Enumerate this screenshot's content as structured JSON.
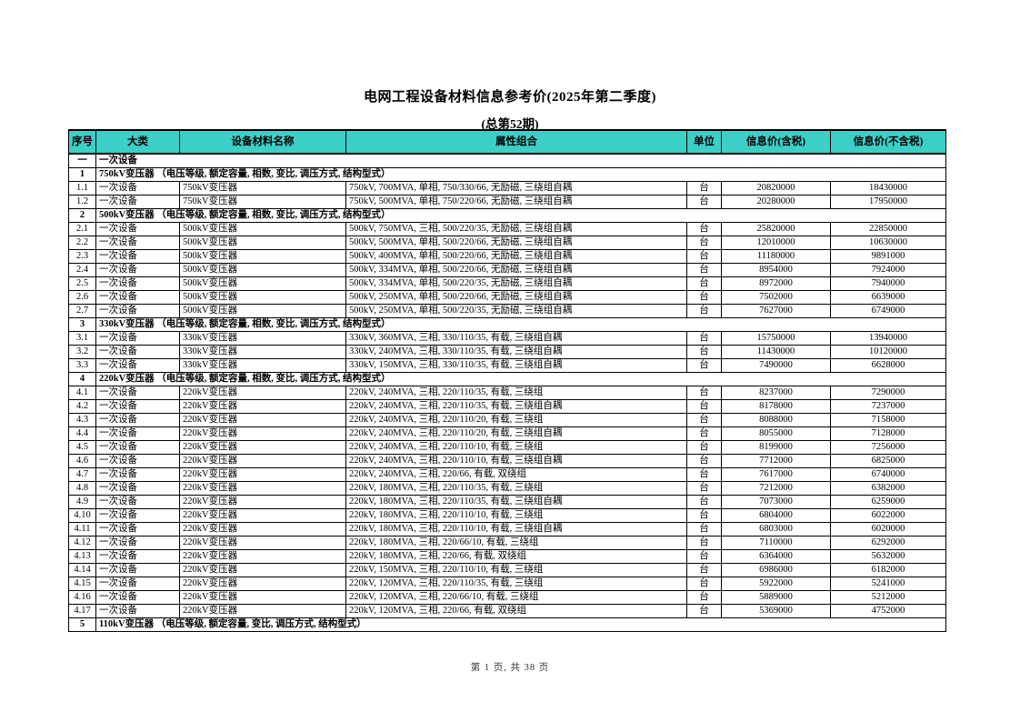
{
  "page": {
    "title": "电网工程设备材料信息参考价(2025年第二季度)",
    "subtitle": "(总第52期)",
    "footer": "第 1 页, 共 38 页"
  },
  "table": {
    "header_bg": "#3ccfc7",
    "columns": [
      "序号",
      "大类",
      "设备材料名称",
      "属性组合",
      "单位",
      "信息价(含税)",
      "信息价(不含税)"
    ],
    "rows": [
      {
        "type": "category",
        "seq": "一",
        "label": "一次设备"
      },
      {
        "type": "section",
        "seq": "1",
        "label": "750kV变压器 （电压等级, 额定容量, 相数, 变比, 调压方式, 结构型式）"
      },
      {
        "type": "item",
        "seq": "1.1",
        "category": "一次设备",
        "name": "750kV变压器",
        "attrs": "750kV, 700MVA, 单相, 750/330/66, 无励磁, 三绕组自耦",
        "unit": "台",
        "price_tax": "20820000",
        "price_notax": "18430000"
      },
      {
        "type": "item",
        "seq": "1.2",
        "category": "一次设备",
        "name": "750kV变压器",
        "attrs": "750kV, 500MVA, 单相, 750/220/66, 无励磁, 三绕组自耦",
        "unit": "台",
        "price_tax": "20280000",
        "price_notax": "17950000"
      },
      {
        "type": "section",
        "seq": "2",
        "label": "500kV变压器 （电压等级, 额定容量, 相数, 变比, 调压方式, 结构型式）"
      },
      {
        "type": "item",
        "seq": "2.1",
        "category": "一次设备",
        "name": "500kV变压器",
        "attrs": "500kV, 750MVA, 三相, 500/220/35, 无励磁, 三绕组自耦",
        "unit": "台",
        "price_tax": "25820000",
        "price_notax": "22850000"
      },
      {
        "type": "item",
        "seq": "2.2",
        "category": "一次设备",
        "name": "500kV变压器",
        "attrs": "500kV, 500MVA, 单相, 500/220/66, 无励磁, 三绕组自耦",
        "unit": "台",
        "price_tax": "12010000",
        "price_notax": "10630000"
      },
      {
        "type": "item",
        "seq": "2.3",
        "category": "一次设备",
        "name": "500kV变压器",
        "attrs": "500kV, 400MVA, 单相, 500/220/66, 无励磁, 三绕组自耦",
        "unit": "台",
        "price_tax": "11180000",
        "price_notax": "9891000"
      },
      {
        "type": "item",
        "seq": "2.4",
        "category": "一次设备",
        "name": "500kV变压器",
        "attrs": "500kV, 334MVA, 单相, 500/220/66, 无励磁, 三绕组自耦",
        "unit": "台",
        "price_tax": "8954000",
        "price_notax": "7924000"
      },
      {
        "type": "item",
        "seq": "2.5",
        "category": "一次设备",
        "name": "500kV变压器",
        "attrs": "500kV, 334MVA, 单相, 500/220/35, 无励磁, 三绕组自耦",
        "unit": "台",
        "price_tax": "8972000",
        "price_notax": "7940000"
      },
      {
        "type": "item",
        "seq": "2.6",
        "category": "一次设备",
        "name": "500kV变压器",
        "attrs": "500kV, 250MVA, 单相, 500/220/66, 无励磁, 三绕组自耦",
        "unit": "台",
        "price_tax": "7502000",
        "price_notax": "6639000"
      },
      {
        "type": "item",
        "seq": "2.7",
        "category": "一次设备",
        "name": "500kV变压器",
        "attrs": "500kV, 250MVA, 单相, 500/220/35, 无励磁, 三绕组自耦",
        "unit": "台",
        "price_tax": "7627000",
        "price_notax": "6749000"
      },
      {
        "type": "section",
        "seq": "3",
        "label": "330kV变压器 （电压等级, 额定容量, 相数, 变比, 调压方式, 结构型式）"
      },
      {
        "type": "item",
        "seq": "3.1",
        "category": "一次设备",
        "name": "330kV变压器",
        "attrs": "330kV, 360MVA, 三相, 330/110/35, 有载, 三绕组自耦",
        "unit": "台",
        "price_tax": "15750000",
        "price_notax": "13940000"
      },
      {
        "type": "item",
        "seq": "3.2",
        "category": "一次设备",
        "name": "330kV变压器",
        "attrs": "330kV, 240MVA, 三相, 330/110/35, 有载, 三绕组自耦",
        "unit": "台",
        "price_tax": "11430000",
        "price_notax": "10120000"
      },
      {
        "type": "item",
        "seq": "3.3",
        "category": "一次设备",
        "name": "330kV变压器",
        "attrs": "330kV, 150MVA, 三相, 330/110/35, 有载, 三绕组自耦",
        "unit": "台",
        "price_tax": "7490000",
        "price_notax": "6628000"
      },
      {
        "type": "section",
        "seq": "4",
        "label": "220kV变压器 （电压等级, 额定容量, 相数, 变比, 调压方式, 结构型式）"
      },
      {
        "type": "item",
        "seq": "4.1",
        "category": "一次设备",
        "name": "220kV变压器",
        "attrs": "220kV, 240MVA, 三相, 220/110/35, 有载, 三绕组",
        "unit": "台",
        "price_tax": "8237000",
        "price_notax": "7290000"
      },
      {
        "type": "item",
        "seq": "4.2",
        "category": "一次设备",
        "name": "220kV变压器",
        "attrs": "220kV, 240MVA, 三相, 220/110/35, 有载, 三绕组自耦",
        "unit": "台",
        "price_tax": "8178000",
        "price_notax": "7237000"
      },
      {
        "type": "item",
        "seq": "4.3",
        "category": "一次设备",
        "name": "220kV变压器",
        "attrs": "220kV, 240MVA, 三相, 220/110/20, 有载, 三绕组",
        "unit": "台",
        "price_tax": "8088000",
        "price_notax": "7158000"
      },
      {
        "type": "item",
        "seq": "4.4",
        "category": "一次设备",
        "name": "220kV变压器",
        "attrs": "220kV, 240MVA, 三相, 220/110/20, 有载, 三绕组自耦",
        "unit": "台",
        "price_tax": "8055000",
        "price_notax": "7128000"
      },
      {
        "type": "item",
        "seq": "4.5",
        "category": "一次设备",
        "name": "220kV变压器",
        "attrs": "220kV, 240MVA, 三相, 220/110/10, 有载, 三绕组",
        "unit": "台",
        "price_tax": "8199000",
        "price_notax": "7256000"
      },
      {
        "type": "item",
        "seq": "4.6",
        "category": "一次设备",
        "name": "220kV变压器",
        "attrs": "220kV, 240MVA, 三相, 220/110/10, 有载, 三绕组自耦",
        "unit": "台",
        "price_tax": "7712000",
        "price_notax": "6825000"
      },
      {
        "type": "item",
        "seq": "4.7",
        "category": "一次设备",
        "name": "220kV变压器",
        "attrs": "220kV, 240MVA, 三相, 220/66, 有载, 双绕组",
        "unit": "台",
        "price_tax": "7617000",
        "price_notax": "6740000"
      },
      {
        "type": "item",
        "seq": "4.8",
        "category": "一次设备",
        "name": "220kV变压器",
        "attrs": "220kV, 180MVA, 三相, 220/110/35, 有载, 三绕组",
        "unit": "台",
        "price_tax": "7212000",
        "price_notax": "6382000"
      },
      {
        "type": "item",
        "seq": "4.9",
        "category": "一次设备",
        "name": "220kV变压器",
        "attrs": "220kV, 180MVA, 三相, 220/110/35, 有载, 三绕组自耦",
        "unit": "台",
        "price_tax": "7073000",
        "price_notax": "6259000"
      },
      {
        "type": "item",
        "seq": "4.10",
        "category": "一次设备",
        "name": "220kV变压器",
        "attrs": "220kV, 180MVA, 三相, 220/110/10, 有载, 三绕组",
        "unit": "台",
        "price_tax": "6804000",
        "price_notax": "6022000"
      },
      {
        "type": "item",
        "seq": "4.11",
        "category": "一次设备",
        "name": "220kV变压器",
        "attrs": "220kV, 180MVA, 三相, 220/110/10, 有载, 三绕组自耦",
        "unit": "台",
        "price_tax": "6803000",
        "price_notax": "6020000"
      },
      {
        "type": "item",
        "seq": "4.12",
        "category": "一次设备",
        "name": "220kV变压器",
        "attrs": "220kV, 180MVA, 三相, 220/66/10, 有载, 三绕组",
        "unit": "台",
        "price_tax": "7110000",
        "price_notax": "6292000"
      },
      {
        "type": "item",
        "seq": "4.13",
        "category": "一次设备",
        "name": "220kV变压器",
        "attrs": "220kV, 180MVA, 三相, 220/66, 有载, 双绕组",
        "unit": "台",
        "price_tax": "6364000",
        "price_notax": "5632000"
      },
      {
        "type": "item",
        "seq": "4.14",
        "category": "一次设备",
        "name": "220kV变压器",
        "attrs": "220kV, 150MVA, 三相, 220/110/10, 有载, 三绕组",
        "unit": "台",
        "price_tax": "6986000",
        "price_notax": "6182000"
      },
      {
        "type": "item",
        "seq": "4.15",
        "category": "一次设备",
        "name": "220kV变压器",
        "attrs": "220kV, 120MVA, 三相, 220/110/35, 有载, 三绕组",
        "unit": "台",
        "price_tax": "5922000",
        "price_notax": "5241000"
      },
      {
        "type": "item",
        "seq": "4.16",
        "category": "一次设备",
        "name": "220kV变压器",
        "attrs": "220kV, 120MVA, 三相, 220/66/10, 有载, 三绕组",
        "unit": "台",
        "price_tax": "5889000",
        "price_notax": "5212000"
      },
      {
        "type": "item",
        "seq": "4.17",
        "category": "一次设备",
        "name": "220kV变压器",
        "attrs": "220kV, 120MVA, 三相, 220/66, 有载, 双绕组",
        "unit": "台",
        "price_tax": "5369000",
        "price_notax": "4752000"
      },
      {
        "type": "section",
        "seq": "5",
        "label": "110kV变压器 （电压等级, 额定容量, 变比, 调压方式, 结构型式）"
      }
    ]
  }
}
